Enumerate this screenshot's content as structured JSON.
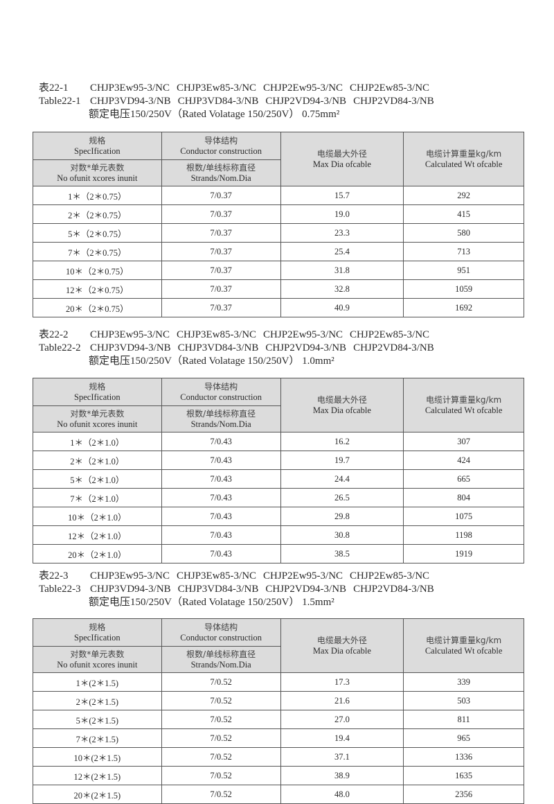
{
  "header_labels": {
    "spec_cn": "规格",
    "spec_en": "SpecIfication",
    "conductor_cn": "导体结构",
    "conductor_en": "Conductor construction",
    "units_cn": "对数*单元表数",
    "units_en": "No ofunit xcores inunit",
    "strands_cn": "根数/单线标称直径",
    "strands_en": "Strands/Nom.Dia",
    "maxdia_cn": "电缆最大外径",
    "maxdia_en": "Max Dia ofcable",
    "weight_cn": "电缆计算重量kg/km",
    "weight_en": "Calculated Wt ofcable"
  },
  "tables": [
    {
      "code_cn": "表22-1",
      "code_en": "Table22-1",
      "models_nc": [
        "CHJP3Ew95-3/NC",
        "CHJP3Ew85-3/NC",
        "CHJP2Ew95-3/NC",
        "CHJP2Ew85-3/NC"
      ],
      "models_nb": [
        "CHJP3VD94-3/NB",
        "CHJP3VD84-3/NB",
        "CHJP2VD94-3/NB",
        "CHJP2VD84-3/NB"
      ],
      "rating": "额定电压150/250V（Rated Volatage 150/250V） 0.75mm²",
      "rows": [
        [
          "1＊（2＊0.75）",
          "7/0.37",
          "15.7",
          "292"
        ],
        [
          "2＊（2＊0.75）",
          "7/0.37",
          "19.0",
          "415"
        ],
        [
          "5＊（2＊0.75）",
          "7/0.37",
          "23.3",
          "580"
        ],
        [
          "7＊（2＊0.75）",
          "7/0.37",
          "25.4",
          "713"
        ],
        [
          "10＊（2＊0.75）",
          "7/0.37",
          "31.8",
          "951"
        ],
        [
          "12＊（2＊0.75）",
          "7/0.37",
          "32.8",
          "1059"
        ],
        [
          "20＊（2＊0.75）",
          "7/0.37",
          "40.9",
          "1692"
        ]
      ]
    },
    {
      "code_cn": "表22-2",
      "code_en": "Table22-2",
      "models_nc": [
        "CHJP3Ew95-3/NC",
        "CHJP3Ew85-3/NC",
        "CHJP2Ew95-3/NC",
        "CHJP2Ew85-3/NC"
      ],
      "models_nb": [
        "CHJP3VD94-3/NB",
        "CHJP3VD84-3/NB",
        "CHJP2VD94-3/NB",
        "CHJP2VD84-3/NB"
      ],
      "rating": "额定电压150/250V（Rated Volatage 150/250V） 1.0mm²",
      "rows": [
        [
          "1＊（2＊1.0）",
          "7/0.43",
          "16.2",
          "307"
        ],
        [
          "2＊（2＊1.0）",
          "7/0.43",
          "19.7",
          "424"
        ],
        [
          "5＊（2＊1.0）",
          "7/0.43",
          "24.4",
          "665"
        ],
        [
          "7＊（2＊1.0）",
          "7/0.43",
          "26.5",
          "804"
        ],
        [
          "10＊（2＊1.0）",
          "7/0.43",
          "29.8",
          "1075"
        ],
        [
          "12＊（2＊1.0）",
          "7/0.43",
          "30.8",
          "1198"
        ],
        [
          "20＊（2＊1.0）",
          "7/0.43",
          "38.5",
          "1919"
        ]
      ]
    },
    {
      "code_cn": "表22-3",
      "code_en": "Table22-3",
      "models_nc": [
        "CHJP3Ew95-3/NC",
        "CHJP3Ew85-3/NC",
        "CHJP2Ew95-3/NC",
        "CHJP2Ew85-3/NC"
      ],
      "models_nb": [
        "CHJP3VD94-3/NB",
        "CHJP3VD84-3/NB",
        "CHJP2VD94-3/NB",
        "CHJP2VD84-3/NB"
      ],
      "rating": "额定电压150/250V（Rated Volatage 150/250V） 1.5mm²",
      "rows": [
        [
          "1＊(2＊1.5)",
          "7/0.52",
          "17.3",
          "339"
        ],
        [
          "2＊(2＊1.5)",
          "7/0.52",
          "21.6",
          "503"
        ],
        [
          "5＊(2＊1.5)",
          "7/0.52",
          "27.0",
          "811"
        ],
        [
          "7＊(2＊1.5)",
          "7/0.52",
          "19.4",
          "965"
        ],
        [
          "10＊(2＊1.5)",
          "7/0.52",
          "37.1",
          "1336"
        ],
        [
          "12＊(2＊1.5)",
          "7/0.52",
          "38.9",
          "1635"
        ],
        [
          "20＊(2＊1.5)",
          "7/0.52",
          "48.0",
          "2356"
        ]
      ]
    }
  ]
}
